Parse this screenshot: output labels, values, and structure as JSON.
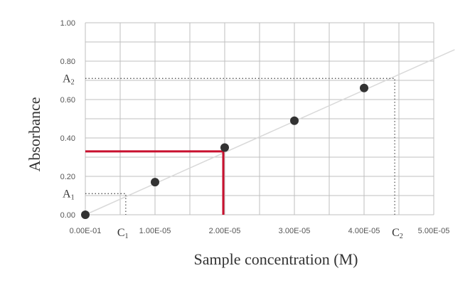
{
  "chart_data": {
    "type": "scatter",
    "title": "",
    "xlabel": "Sample concentration (M)",
    "ylabel": "Absorbance",
    "xlim": [
      0,
      5e-05
    ],
    "ylim": [
      0,
      1.0
    ],
    "grid": true,
    "x_ticks": [
      {
        "value": 0,
        "label": "0.00E-01"
      },
      {
        "value": 1e-05,
        "label": "1.00E-05"
      },
      {
        "value": 2e-05,
        "label": "2.00E-05"
      },
      {
        "value": 3e-05,
        "label": "3.00E-05"
      },
      {
        "value": 4e-05,
        "label": "4.00E-05"
      },
      {
        "value": 5e-05,
        "label": "5.00E-05"
      }
    ],
    "y_ticks": [
      {
        "value": 0,
        "label": "0.00"
      },
      {
        "value": 0.2,
        "label": "0.20"
      },
      {
        "value": 0.4,
        "label": "0.40"
      },
      {
        "value": 0.6,
        "label": "0.60"
      },
      {
        "value": 0.8,
        "label": "0.80"
      },
      {
        "value": 1.0,
        "label": "1.00"
      }
    ],
    "points": [
      {
        "x": 0,
        "y": 0.0
      },
      {
        "x": 1e-05,
        "y": 0.17
      },
      {
        "x": 2e-05,
        "y": 0.35
      },
      {
        "x": 3e-05,
        "y": 0.49
      },
      {
        "x": 4e-05,
        "y": 0.66
      }
    ],
    "fit_line": {
      "x0": 0,
      "y0": 0.0,
      "x1": 5.3e-05,
      "y1": 0.86
    },
    "annotations": {
      "A1": {
        "label": "A",
        "sub": "1",
        "y": 0.11
      },
      "C1": {
        "label": "C",
        "sub": "1",
        "x": 5.8e-06
      },
      "A2": {
        "label": "A",
        "sub": "2",
        "y": 0.71
      },
      "C2": {
        "label": "C",
        "sub": "2",
        "x": 4.44e-05
      }
    },
    "highlight": {
      "x": 2e-05,
      "y": 0.33,
      "color": "#c8102e"
    },
    "colors": {
      "grid": "#bfbfbf",
      "point": "#333333",
      "fit": "#d9d9d9",
      "guide": "#555555"
    }
  }
}
